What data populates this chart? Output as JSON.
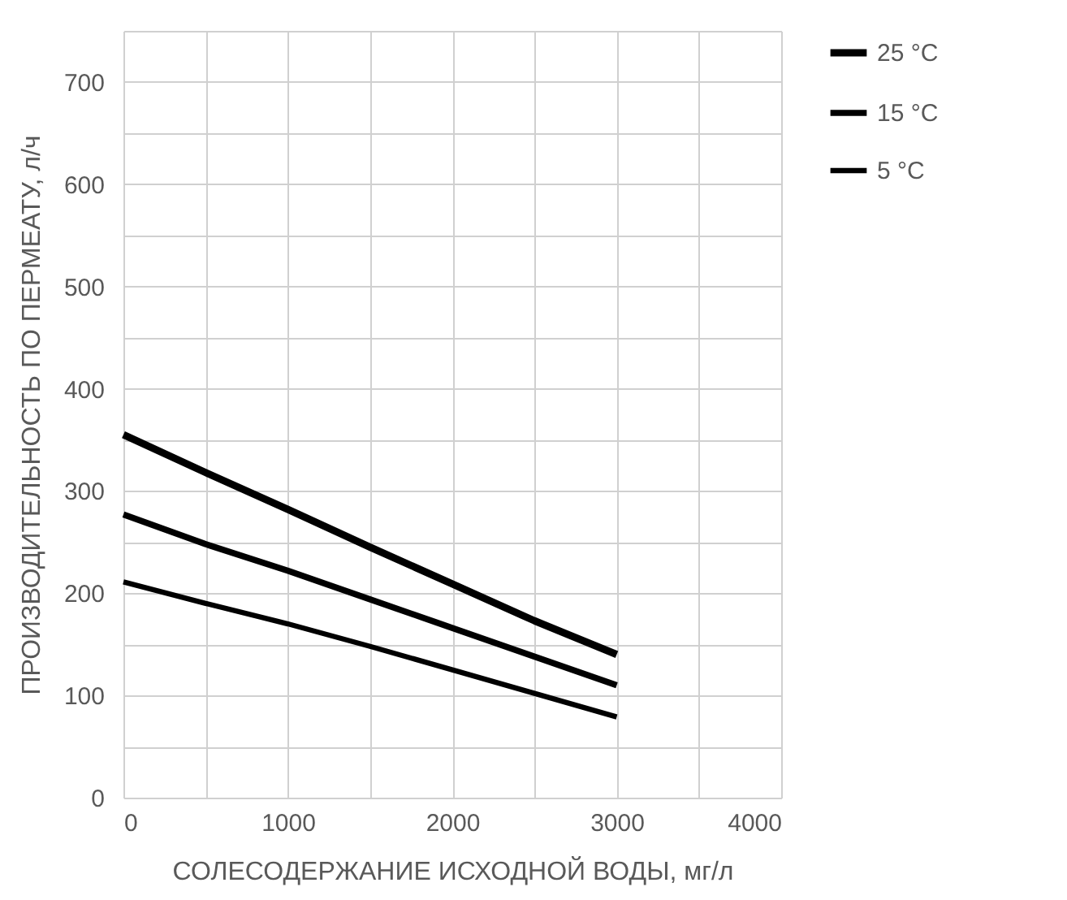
{
  "chart_data": {
    "type": "line",
    "xlabel": "СОЛЕСОДЕРЖАНИЕ ИСХОДНОЙ ВОДЫ, мг/л",
    "ylabel": "ПРОИЗВОДИТЕЛЬНОСТЬ ПО ПЕРМЕАТУ, л/ч",
    "x": [
      0,
      500,
      1000,
      1500,
      2000,
      2500,
      3000
    ],
    "series": [
      {
        "name": "25 °C",
        "color": "#000000",
        "values": [
          355,
          318,
          282,
          245,
          209,
          173,
          140
        ]
      },
      {
        "name": "15 °C",
        "color": "#000000",
        "values": [
          277,
          248,
          222,
          194,
          166,
          138,
          110
        ]
      },
      {
        "name": "5 °C",
        "color": "#000000",
        "values": [
          211,
          190,
          170,
          148,
          125,
          102,
          79
        ]
      }
    ],
    "xlim": [
      0,
      4000
    ],
    "xticks": [
      0,
      {
        "value": 500,
        "label": null
      },
      1000,
      {
        "value": 1500,
        "label": null
      },
      2000,
      {
        "value": 2500,
        "label": null
      },
      3000,
      {
        "value": 3500,
        "label": null
      },
      4000
    ],
    "ylim": [
      0,
      750
    ],
    "yticks": [
      0,
      {
        "value": 50,
        "label": null
      },
      100,
      {
        "value": 150,
        "label": null
      },
      200,
      {
        "value": 250,
        "label": null
      },
      300,
      {
        "value": 350,
        "label": null
      },
      400,
      {
        "value": 450,
        "label": null
      },
      500,
      {
        "value": 550,
        "label": null
      },
      600,
      {
        "value": 650,
        "label": null
      },
      700,
      {
        "value": 750,
        "label": null
      }
    ],
    "grid": true,
    "legend": "top right",
    "marker": "none",
    "line_style": "solid"
  }
}
